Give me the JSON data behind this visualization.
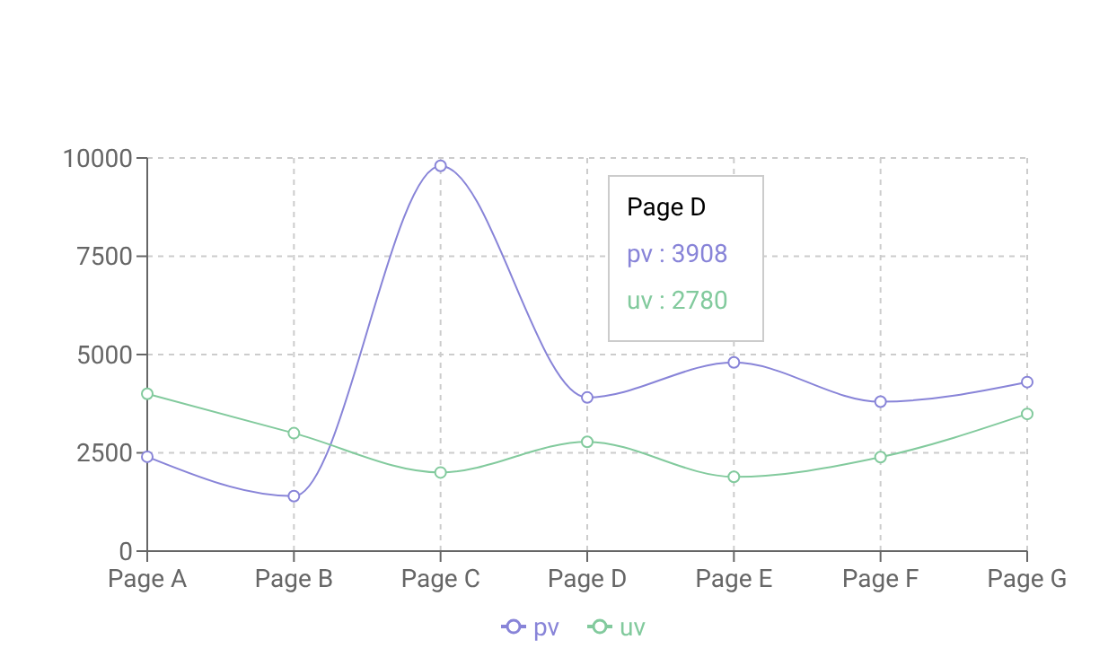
{
  "chart_data": {
    "type": "line",
    "categories": [
      "Page A",
      "Page B",
      "Page C",
      "Page D",
      "Page E",
      "Page F",
      "Page G"
    ],
    "series": [
      {
        "name": "pv",
        "color": "#8884d8",
        "values": [
          2400,
          1398,
          9800,
          3908,
          4800,
          3800,
          4300
        ]
      },
      {
        "name": "uv",
        "color": "#82ca9d",
        "values": [
          4000,
          3000,
          2000,
          2780,
          1890,
          2390,
          3490
        ]
      }
    ],
    "ylim": [
      0,
      10000
    ],
    "yticks": [
      0,
      2500,
      5000,
      7500,
      10000
    ],
    "grid": true,
    "legend": "bottom",
    "marker": "circle",
    "line_style": "solid",
    "annotations": [
      "Page D",
      "pv : 3908",
      "uv : 2780"
    ]
  }
}
